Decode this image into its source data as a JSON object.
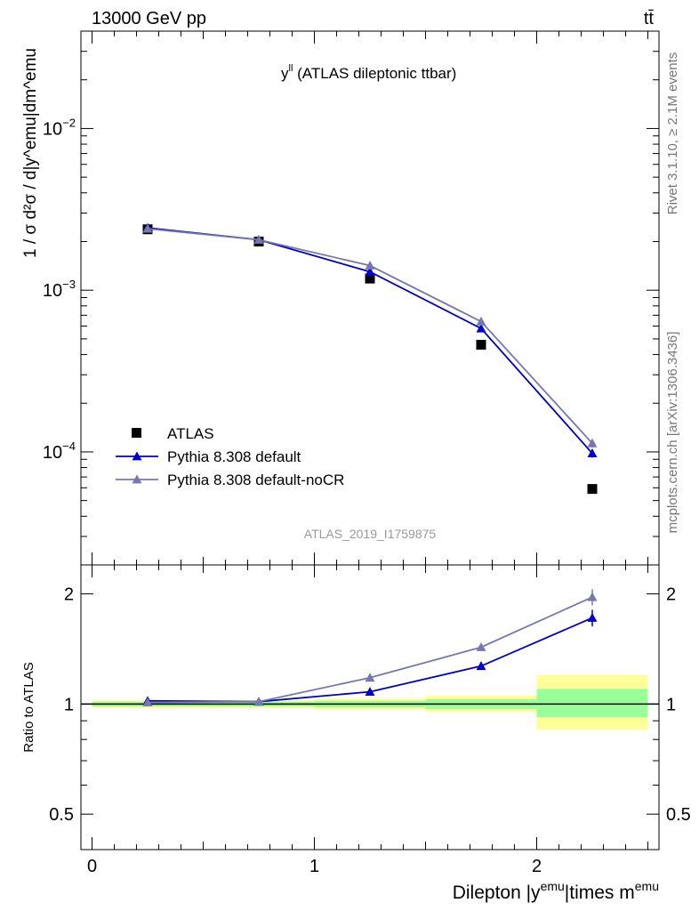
{
  "header": {
    "left": "13000 GeV pp",
    "right": "tt̄"
  },
  "side_labels": {
    "rivet": "Rivet 3.1.10, ≥ 2.1M events",
    "mcplots": "mcplots.cern.ch [arXiv:1306.3436]"
  },
  "chart_data": [
    {
      "type": "scatter",
      "panel": "main",
      "title_main": "y",
      "title_sup": "ll",
      "title_rest": " (ATLAS dileptonic ttbar)",
      "analysis_tag": "ATLAS_2019_I1759875",
      "ylabel": "1 / σ d²σ / d|y^emu|dm^emu",
      "yscale": "log",
      "ylim": [
        2e-05,
        0.04
      ],
      "xlim": [
        -0.05,
        2.55
      ],
      "y_tick_labels": [
        {
          "base": "10",
          "exp": "−2",
          "value": 0.01
        },
        {
          "base": "10",
          "exp": "−3",
          "value": 0.001
        },
        {
          "base": "10",
          "exp": "−4",
          "value": 0.0001
        }
      ],
      "legend_position": "bottom-left",
      "series": [
        {
          "name": "ATLAS",
          "marker": "square",
          "color": "#000000",
          "x": [
            0.25,
            0.75,
            1.25,
            1.75,
            2.25
          ],
          "y": [
            0.00238,
            0.002,
            0.00118,
            0.00046,
            5.9e-05
          ]
        },
        {
          "name": "Pythia 8.308 default",
          "marker": "triangle",
          "color": "#0000cc",
          "x": [
            0.25,
            0.75,
            1.25,
            1.75,
            2.25
          ],
          "y": [
            0.00243,
            0.00205,
            0.0013,
            0.00058,
            9.8e-05
          ]
        },
        {
          "name": "Pythia 8.308 default-noCR",
          "marker": "triangle",
          "color": "#7777b0",
          "x": [
            0.25,
            0.75,
            1.25,
            1.75,
            2.25
          ],
          "y": [
            0.0024,
            0.00205,
            0.00142,
            0.00064,
            0.000113
          ]
        }
      ]
    },
    {
      "type": "scatter",
      "panel": "ratio",
      "ylabel": "Ratio to ATLAS",
      "xlabel_main": "Dilepton |y",
      "xlabel_sup1": "emu",
      "xlabel_mid": "|times m",
      "xlabel_sup2": "emu",
      "yscale": "log",
      "ylim": [
        0.4,
        2.4
      ],
      "xlim": [
        -0.05,
        2.55
      ],
      "x_tick_labels": [
        "0",
        "1",
        "2"
      ],
      "y_tick_labels": [
        "0.5",
        "1",
        "2"
      ],
      "bands": [
        {
          "xlo": 0.0,
          "xhi": 1.0,
          "yellow": [
            0.975,
            1.025
          ],
          "green": [
            0.985,
            1.015
          ]
        },
        {
          "xlo": 1.0,
          "xhi": 1.5,
          "yellow": [
            0.965,
            1.035
          ],
          "green": [
            0.98,
            1.02
          ]
        },
        {
          "xlo": 1.5,
          "xhi": 2.0,
          "yellow": [
            0.95,
            1.055
          ],
          "green": [
            0.97,
            1.03
          ]
        },
        {
          "xlo": 2.0,
          "xhi": 2.5,
          "yellow": [
            0.85,
            1.2
          ],
          "green": [
            0.92,
            1.1
          ]
        }
      ],
      "series": [
        {
          "name": "Pythia 8.308 default",
          "color": "#0000cc",
          "x": [
            0.25,
            0.75,
            1.25,
            1.75,
            2.25
          ],
          "y": [
            1.02,
            1.015,
            1.08,
            1.27,
            1.72
          ],
          "err": [
            0.005,
            0.005,
            0.01,
            0.03,
            0.09
          ]
        },
        {
          "name": "Pythia 8.308 default-noCR",
          "color": "#7777b0",
          "x": [
            0.25,
            0.75,
            1.25,
            1.75,
            2.25
          ],
          "y": [
            1.01,
            1.015,
            1.18,
            1.43,
            1.96
          ],
          "err": [
            0.005,
            0.005,
            0.01,
            0.03,
            0.1
          ]
        }
      ]
    }
  ]
}
